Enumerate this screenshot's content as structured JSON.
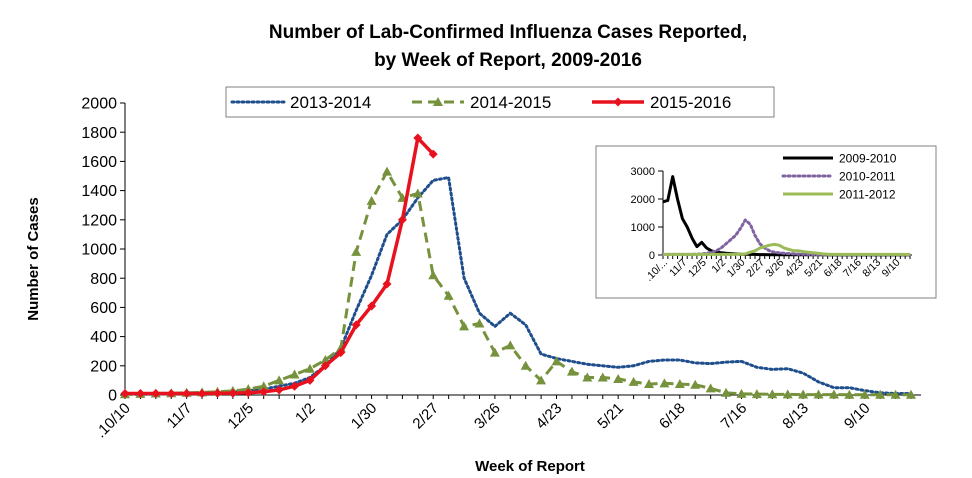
{
  "chart_data": [
    {
      "type": "line",
      "title_lines": [
        "Number of Lab-Confirmed Influenza Cases Reported,",
        "by Week of Report, 2009-2016"
      ],
      "xlabel": "Week of Report",
      "ylabel": "Number of Cases",
      "ylim": [
        0,
        2000
      ],
      "yticks": [
        0,
        200,
        400,
        600,
        800,
        1000,
        1200,
        1400,
        1600,
        1800,
        2000
      ],
      "x_tick_labels": [
        ".10/10",
        "11/7",
        "12/5",
        "1/2",
        "1/30",
        "2/27",
        "3/26",
        "4/23",
        "5/21",
        "6/18",
        "7/16",
        "8/13",
        "9/10"
      ],
      "weeks": 52,
      "legend_position": "top",
      "series": [
        {
          "name": "2013-2014",
          "color": "#1F4E8C",
          "style": "dotted",
          "values": [
            5,
            5,
            6,
            8,
            10,
            12,
            15,
            20,
            30,
            40,
            60,
            80,
            120,
            200,
            320,
            580,
            820,
            1100,
            1200,
            1350,
            1470,
            1490,
            800,
            560,
            470,
            560,
            480,
            280,
            250,
            230,
            210,
            200,
            190,
            200,
            230,
            240,
            240,
            220,
            215,
            225,
            230,
            190,
            175,
            180,
            150,
            90,
            50,
            50,
            30,
            15,
            10,
            10
          ]
        },
        {
          "name": "2014-2015",
          "color": "#76923C",
          "style": "dashed",
          "marker": "triangle",
          "values": [
            5,
            8,
            10,
            12,
            15,
            18,
            22,
            28,
            40,
            60,
            100,
            140,
            180,
            240,
            320,
            980,
            1330,
            1530,
            1350,
            1380,
            820,
            680,
            470,
            490,
            290,
            340,
            200,
            100,
            230,
            160,
            120,
            120,
            110,
            90,
            75,
            80,
            75,
            70,
            45,
            15,
            8,
            6,
            5,
            4,
            3,
            3,
            3,
            2,
            2,
            2,
            2,
            2
          ]
        },
        {
          "name": "2015-2016",
          "color": "#E8121E",
          "style": "solid",
          "marker": "diamond",
          "values": [
            10,
            10,
            10,
            10,
            10,
            10,
            12,
            12,
            15,
            22,
            35,
            60,
            100,
            200,
            290,
            480,
            610,
            760,
            1200,
            1760,
            1650
          ]
        }
      ]
    },
    {
      "type": "line",
      "title": "inset",
      "ylim": [
        0,
        3000
      ],
      "yticks": [
        0,
        1000,
        2000,
        3000
      ],
      "x_tick_labels": [
        ".10/...",
        "11/7",
        "12/5",
        "1/2",
        "1/30",
        "2/27",
        "3/26",
        "4/23",
        "5/21",
        "6/18",
        "7/16",
        "8/13",
        "9/10"
      ],
      "weeks": 52,
      "legend_position": "top-right",
      "series": [
        {
          "name": "2009-2010",
          "color": "#000000",
          "style": "solid",
          "values": [
            1900,
            1950,
            2800,
            2000,
            1300,
            1000,
            600,
            300,
            450,
            250,
            150,
            100,
            80,
            60,
            50,
            40,
            30,
            25,
            20,
            20,
            15,
            15,
            10,
            10,
            10,
            10,
            8,
            8,
            8,
            8,
            6,
            6,
            6,
            6,
            5,
            5,
            5,
            5,
            5,
            5,
            5,
            5,
            5,
            5,
            5,
            5,
            5,
            5,
            5,
            5,
            5,
            5
          ]
        },
        {
          "name": "2010-2011",
          "color": "#8064A2",
          "style": "dotted",
          "values": [
            20,
            20,
            20,
            20,
            20,
            20,
            25,
            30,
            40,
            60,
            100,
            150,
            250,
            400,
            550,
            700,
            950,
            1250,
            1100,
            700,
            400,
            250,
            150,
            100,
            80,
            60,
            50,
            40,
            30,
            25,
            20,
            15,
            12,
            10,
            10,
            10,
            10,
            10,
            10,
            10,
            10,
            10,
            10,
            10,
            10,
            10,
            10,
            10,
            10,
            10,
            10,
            10
          ]
        },
        {
          "name": "2011-2012",
          "color": "#9BBB59",
          "style": "solid",
          "values": [
            20,
            20,
            20,
            20,
            20,
            20,
            20,
            20,
            20,
            20,
            20,
            20,
            20,
            20,
            20,
            25,
            30,
            40,
            100,
            150,
            250,
            300,
            350,
            380,
            350,
            250,
            200,
            150,
            150,
            120,
            100,
            80,
            60,
            40,
            30,
            20,
            20,
            20,
            20,
            20,
            20,
            20,
            20,
            20,
            20,
            20,
            20,
            20,
            20,
            20,
            20,
            20
          ]
        }
      ]
    }
  ]
}
